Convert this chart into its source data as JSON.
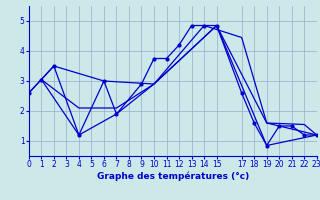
{
  "bg_color": "#cce8e8",
  "line_color": "#0000cc",
  "grid_color": "#99aacc",
  "xlabel": "Graphe des températures (°c)",
  "xlim": [
    0,
    23
  ],
  "ylim": [
    0.5,
    5.5
  ],
  "yticks": [
    1,
    2,
    3,
    4,
    5
  ],
  "xticks": [
    0,
    1,
    2,
    3,
    4,
    5,
    6,
    7,
    8,
    9,
    10,
    11,
    12,
    13,
    14,
    15,
    17,
    18,
    19,
    20,
    21,
    22,
    23
  ],
  "line1_x": [
    0,
    1,
    2,
    4,
    6,
    7,
    9,
    10,
    11,
    12,
    13,
    14,
    15,
    17,
    18,
    19,
    20,
    21,
    22,
    23
  ],
  "line1_y": [
    2.6,
    3.05,
    3.5,
    1.2,
    3.0,
    1.9,
    2.9,
    3.75,
    3.75,
    4.2,
    4.85,
    4.85,
    4.85,
    2.6,
    1.6,
    0.85,
    1.5,
    1.5,
    1.2,
    1.2
  ],
  "line2_x": [
    0,
    2,
    6,
    10,
    14,
    17,
    19,
    22,
    23
  ],
  "line2_y": [
    2.6,
    3.5,
    3.0,
    2.9,
    4.85,
    4.45,
    1.6,
    1.55,
    1.2
  ],
  "line3_x": [
    1,
    4,
    7,
    10,
    15,
    19,
    23
  ],
  "line3_y": [
    3.05,
    1.2,
    1.9,
    2.9,
    4.85,
    0.85,
    1.2
  ],
  "line4_x": [
    1,
    4,
    7,
    10,
    15,
    19,
    23
  ],
  "line4_y": [
    3.05,
    2.1,
    2.1,
    2.9,
    4.85,
    1.6,
    1.2
  ]
}
